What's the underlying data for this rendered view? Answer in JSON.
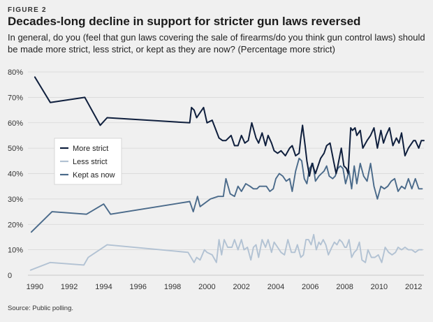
{
  "header": {
    "figure_label": "FIGURE 2",
    "title": "Decades-long decline in support for stricter gun laws reversed",
    "subtitle": "In general, do you (feel that gun laws covering the sale of firearms/do you think gun control laws) should be made more strict, less strict, or kept as they are now? (Percentage more strict)"
  },
  "footer": {
    "source": "Source: Public polling."
  },
  "chart_data": {
    "type": "line",
    "title": "Decades-long decline in support for stricter gun laws reversed",
    "xlabel": "",
    "ylabel": "",
    "xlim": [
      1989.6,
      2012.6
    ],
    "ylim": [
      0,
      80
    ],
    "grid": true,
    "legend_position": "left-middle",
    "x_ticks": [
      1990,
      1992,
      1994,
      1996,
      1998,
      2000,
      2002,
      2004,
      2006,
      2008,
      2010,
      2012
    ],
    "x_tick_labels": [
      "1990",
      "1992",
      "1994",
      "1996",
      "1998",
      "2000",
      "2002",
      "2004",
      "2006",
      "2008",
      "2010",
      "2012"
    ],
    "y_ticks": [
      0,
      10,
      20,
      30,
      40,
      50,
      60,
      70,
      80
    ],
    "y_tick_labels": [
      "0",
      "10%",
      "20%",
      "30%",
      "40%",
      "50%",
      "60%",
      "70%",
      "80%"
    ],
    "series": [
      {
        "name": "More strict",
        "color": "#0f1f3d",
        "x": [
          1990.0,
          1990.9,
          1992.9,
          1993.8,
          1994.2,
          1999.0,
          1999.1,
          1999.25,
          1999.4,
          1999.6,
          1999.8,
          2000.0,
          2000.3,
          2000.7,
          2000.9,
          2001.1,
          2001.4,
          2001.6,
          2001.8,
          2002.0,
          2002.2,
          2002.4,
          2002.6,
          2002.85,
          2003.0,
          2003.2,
          2003.4,
          2003.55,
          2003.75,
          2003.9,
          2004.1,
          2004.3,
          2004.55,
          2004.8,
          2004.95,
          2005.15,
          2005.35,
          2005.45,
          2005.55,
          2005.7,
          2005.8,
          2005.95,
          2006.1,
          2006.3,
          2006.45,
          2006.6,
          2006.8,
          2006.95,
          2007.15,
          2007.35,
          2007.5,
          2007.6,
          2007.8,
          2007.95,
          2008.1,
          2008.2,
          2008.35,
          2008.45,
          2008.6,
          2008.7,
          2008.9,
          2009.05,
          2009.3,
          2009.5,
          2009.7,
          2009.9,
          2010.1,
          2010.25,
          2010.4,
          2010.6,
          2010.8,
          2011.0,
          2011.15,
          2011.3,
          2011.5,
          2011.7,
          2012.0,
          2012.1,
          2012.3,
          2012.45,
          2012.6
        ],
        "values": [
          78,
          68,
          70,
          59,
          62,
          60,
          66,
          65,
          62,
          64,
          66,
          60,
          61,
          54,
          53,
          53,
          55,
          51,
          51,
          55,
          52,
          53,
          60,
          54,
          52,
          56,
          51,
          55,
          52,
          49,
          48,
          49,
          47,
          50,
          51,
          47,
          48,
          54,
          59,
          51,
          45,
          39,
          44,
          40,
          43,
          46,
          48,
          51,
          52,
          45,
          40,
          43,
          50,
          43,
          42,
          40,
          58,
          57,
          58,
          55,
          57,
          50,
          53,
          55,
          58,
          50,
          57,
          52,
          55,
          58,
          51,
          54,
          52,
          56,
          47,
          50,
          53,
          53,
          50,
          53,
          53
        ]
      },
      {
        "name": "Less strict",
        "color": "#b2c2d3",
        "x": [
          1989.75,
          1990.9,
          1992.85,
          1993.1,
          1994.2,
          1998.9,
          1999.25,
          1999.4,
          1999.6,
          1999.85,
          2000.0,
          2000.3,
          2000.55,
          2000.7,
          2000.85,
          2001.0,
          2001.2,
          2001.45,
          2001.6,
          2001.8,
          2002.0,
          2002.15,
          2002.35,
          2002.55,
          2002.7,
          2002.85,
          2003.0,
          2003.2,
          2003.4,
          2003.55,
          2003.75,
          2003.9,
          2004.1,
          2004.3,
          2004.5,
          2004.7,
          2004.9,
          2005.1,
          2005.25,
          2005.45,
          2005.6,
          2005.75,
          2005.9,
          2006.05,
          2006.2,
          2006.35,
          2006.5,
          2006.6,
          2006.75,
          2006.9,
          2007.05,
          2007.25,
          2007.4,
          2007.55,
          2007.7,
          2007.85,
          2008.0,
          2008.1,
          2008.25,
          2008.4,
          2008.55,
          2008.7,
          2008.85,
          2009.0,
          2009.2,
          2009.35,
          2009.55,
          2009.75,
          2009.95,
          2010.15,
          2010.35,
          2010.55,
          2010.75,
          2010.95,
          2011.1,
          2011.3,
          2011.5,
          2011.7,
          2011.9,
          2012.1,
          2012.3,
          2012.5
        ],
        "values": [
          2,
          5,
          4,
          7,
          12,
          9,
          5,
          7,
          6,
          10,
          9,
          8,
          5,
          14,
          8,
          14,
          11,
          11,
          14,
          10,
          14,
          10,
          11,
          6,
          11,
          12,
          7,
          14,
          11,
          14,
          9,
          13,
          11,
          9,
          8,
          14,
          9,
          9,
          12,
          7,
          8,
          14,
          14,
          12,
          16,
          10,
          13,
          12,
          14,
          12,
          8,
          11,
          13,
          12,
          14,
          13,
          11,
          11,
          14,
          7,
          9,
          10,
          13,
          6,
          5,
          10,
          7,
          7,
          8,
          5,
          11,
          9,
          8,
          9,
          11,
          10,
          11,
          10,
          10,
          9,
          10,
          10
        ]
      },
      {
        "name": "Kept as now",
        "color": "#4a6a8a",
        "x": [
          1989.8,
          1991.0,
          1993.0,
          1994.0,
          1994.4,
          1999.0,
          1999.2,
          1999.45,
          1999.6,
          2000.2,
          2000.65,
          2000.95,
          2001.1,
          2001.35,
          2001.6,
          2001.8,
          2002.0,
          2002.25,
          2002.5,
          2002.7,
          2002.9,
          2003.05,
          2003.25,
          2003.45,
          2003.65,
          2003.85,
          2004.0,
          2004.2,
          2004.4,
          2004.6,
          2004.8,
          2004.95,
          2005.15,
          2005.35,
          2005.5,
          2005.65,
          2005.8,
          2005.95,
          2006.15,
          2006.3,
          2006.5,
          2006.65,
          2006.8,
          2006.95,
          2007.1,
          2007.3,
          2007.45,
          2007.6,
          2007.75,
          2007.9,
          2008.05,
          2008.25,
          2008.4,
          2008.55,
          2008.7,
          2008.9,
          2009.1,
          2009.3,
          2009.5,
          2009.7,
          2009.9,
          2010.1,
          2010.3,
          2010.5,
          2010.7,
          2010.9,
          2011.1,
          2011.3,
          2011.5,
          2011.7,
          2011.9,
          2012.1,
          2012.3,
          2012.5
        ],
        "values": [
          17,
          25,
          24,
          28,
          24,
          29,
          25,
          31,
          27,
          30,
          31,
          31,
          38,
          32,
          31,
          35,
          33,
          36,
          35,
          34,
          34,
          35,
          35,
          35,
          33,
          34,
          38,
          40,
          39,
          37,
          38,
          33,
          41,
          46,
          45,
          38,
          36,
          42,
          44,
          37,
          39,
          40,
          41,
          43,
          39,
          38,
          39,
          42,
          43,
          42,
          36,
          41,
          34,
          43,
          36,
          44,
          39,
          37,
          44,
          35,
          30,
          35,
          34,
          35,
          37,
          38,
          33,
          35,
          34,
          38,
          34,
          38,
          34,
          34
        ]
      }
    ]
  }
}
